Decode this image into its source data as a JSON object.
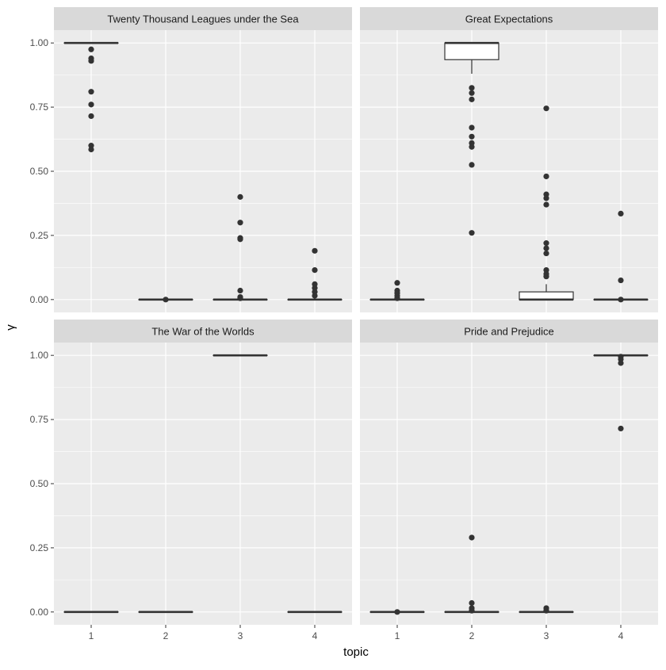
{
  "chart_data": {
    "type": "box",
    "xlabel": "topic",
    "ylabel": "γ",
    "categories": [
      "1",
      "2",
      "3",
      "4"
    ],
    "ylim": [
      -0.05,
      1.05
    ],
    "yticks": [
      0.0,
      0.25,
      0.5,
      0.75,
      1.0
    ],
    "ytick_labels": [
      "0.00",
      "0.25",
      "0.50",
      "0.75",
      "1.00"
    ],
    "grid": true,
    "colors": {
      "panel_background": "#ebebeb",
      "grid_line": "#ffffff",
      "strip_background": "#d9d9d9",
      "box_fill": "#ffffff",
      "box_stroke": "#333333",
      "outlier": "#333333"
    },
    "facets": [
      {
        "title": "Twenty Thousand Leagues under the Sea",
        "boxes": [
          {
            "topic": "1",
            "q1": 1.0,
            "median": 1.0,
            "q3": 1.0,
            "whisker_low": 1.0,
            "whisker_high": 1.0,
            "outliers": [
              0.975,
              0.94,
              0.93,
              0.81,
              0.76,
              0.715,
              0.6,
              0.585
            ]
          },
          {
            "topic": "2",
            "q1": 0.0,
            "median": 0.0,
            "q3": 0.0,
            "whisker_low": 0.0,
            "whisker_high": 0.0,
            "outliers": [
              0.0
            ]
          },
          {
            "topic": "3",
            "q1": 0.0,
            "median": 0.0,
            "q3": 0.0,
            "whisker_low": 0.0,
            "whisker_high": 0.0,
            "outliers": [
              0.4,
              0.3,
              0.24,
              0.235,
              0.035,
              0.01,
              0.005
            ]
          },
          {
            "topic": "4",
            "q1": 0.0,
            "median": 0.0,
            "q3": 0.0,
            "whisker_low": 0.0,
            "whisker_high": 0.0,
            "outliers": [
              0.19,
              0.115,
              0.06,
              0.045,
              0.03,
              0.015
            ]
          }
        ]
      },
      {
        "title": "Great Expectations",
        "boxes": [
          {
            "topic": "1",
            "q1": 0.0,
            "median": 0.0,
            "q3": 0.0,
            "whisker_low": 0.0,
            "whisker_high": 0.0,
            "outliers": [
              0.065,
              0.035,
              0.025,
              0.015,
              0.005
            ]
          },
          {
            "topic": "2",
            "q1": 0.935,
            "median": 1.0,
            "q3": 1.0,
            "whisker_low": 0.88,
            "whisker_high": 1.0,
            "outliers": [
              0.825,
              0.805,
              0.78,
              0.67,
              0.635,
              0.61,
              0.595,
              0.525,
              0.26
            ]
          },
          {
            "topic": "3",
            "q1": 0.0,
            "median": 0.0,
            "q3": 0.03,
            "whisker_low": 0.0,
            "whisker_high": 0.06,
            "outliers": [
              0.745,
              0.48,
              0.41,
              0.395,
              0.37,
              0.22,
              0.2,
              0.18,
              0.115,
              0.1,
              0.09
            ]
          },
          {
            "topic": "4",
            "q1": 0.0,
            "median": 0.0,
            "q3": 0.0,
            "whisker_low": 0.0,
            "whisker_high": 0.0,
            "outliers": [
              0.335,
              0.075,
              0.0
            ]
          }
        ]
      },
      {
        "title": "The War of the Worlds",
        "boxes": [
          {
            "topic": "1",
            "q1": 0.0,
            "median": 0.0,
            "q3": 0.0,
            "whisker_low": 0.0,
            "whisker_high": 0.0,
            "outliers": []
          },
          {
            "topic": "2",
            "q1": 0.0,
            "median": 0.0,
            "q3": 0.0,
            "whisker_low": 0.0,
            "whisker_high": 0.0,
            "outliers": []
          },
          {
            "topic": "3",
            "q1": 1.0,
            "median": 1.0,
            "q3": 1.0,
            "whisker_low": 1.0,
            "whisker_high": 1.0,
            "outliers": []
          },
          {
            "topic": "4",
            "q1": 0.0,
            "median": 0.0,
            "q3": 0.0,
            "whisker_low": 0.0,
            "whisker_high": 0.0,
            "outliers": []
          }
        ]
      },
      {
        "title": "Pride and Prejudice",
        "boxes": [
          {
            "topic": "1",
            "q1": 0.0,
            "median": 0.0,
            "q3": 0.0,
            "whisker_low": 0.0,
            "whisker_high": 0.0,
            "outliers": [
              0.0
            ]
          },
          {
            "topic": "2",
            "q1": 0.0,
            "median": 0.0,
            "q3": 0.0,
            "whisker_low": 0.0,
            "whisker_high": 0.0,
            "outliers": [
              0.29,
              0.035,
              0.015,
              0.005
            ]
          },
          {
            "topic": "3",
            "q1": 0.0,
            "median": 0.0,
            "q3": 0.0,
            "whisker_low": 0.0,
            "whisker_high": 0.0,
            "outliers": [
              0.015,
              0.005
            ]
          },
          {
            "topic": "4",
            "q1": 1.0,
            "median": 1.0,
            "q3": 1.0,
            "whisker_low": 1.0,
            "whisker_high": 1.0,
            "outliers": [
              0.995,
              0.985,
              0.97,
              0.715
            ]
          }
        ]
      }
    ]
  }
}
